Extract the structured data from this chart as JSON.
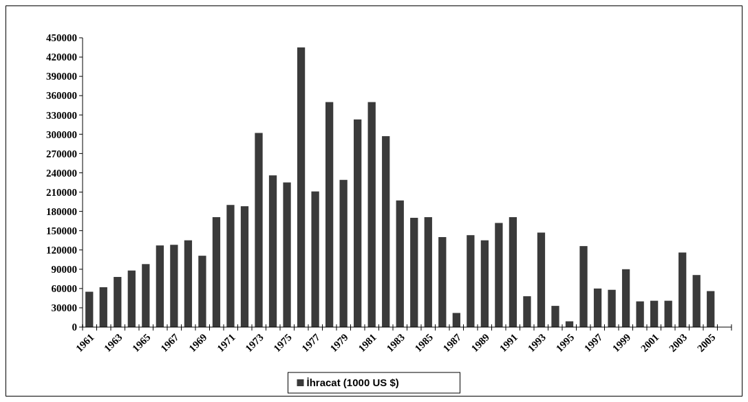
{
  "chart_data": {
    "type": "bar",
    "categories": [
      "1961",
      null,
      "1963",
      null,
      "1965",
      null,
      "1967",
      null,
      "1969",
      null,
      "1971",
      null,
      "1973",
      null,
      "1975",
      null,
      "1977",
      null,
      "1979",
      null,
      "1981",
      null,
      "1983",
      null,
      "1985",
      null,
      "1987",
      null,
      "1989",
      null,
      "1991",
      null,
      "1993",
      null,
      "1995",
      null,
      "1997",
      null,
      "1999",
      null,
      "2001",
      null,
      "2003",
      null,
      "2005",
      null
    ],
    "series": [
      {
        "name": "İhracat (1000 US $)",
        "color": "#3a3a3a",
        "values": [
          55000,
          62000,
          78000,
          88000,
          98000,
          127000,
          128000,
          135000,
          111000,
          171000,
          190000,
          188000,
          302000,
          236000,
          225000,
          435000,
          211000,
          350000,
          229000,
          323000,
          350000,
          297000,
          197000,
          170000,
          171000,
          140000,
          22000,
          143000,
          135000,
          162000,
          171000,
          48000,
          147000,
          33000,
          9000,
          126000,
          60000,
          58000,
          90000,
          40000,
          41000,
          41000,
          116000,
          81000,
          56000,
          null
        ]
      }
    ],
    "ylim": [
      0,
      450000
    ],
    "yticks": [
      0,
      30000,
      60000,
      90000,
      120000,
      150000,
      180000,
      210000,
      240000,
      270000,
      300000,
      330000,
      360000,
      390000,
      420000,
      450000
    ],
    "legend": "bottom",
    "grid": false
  }
}
